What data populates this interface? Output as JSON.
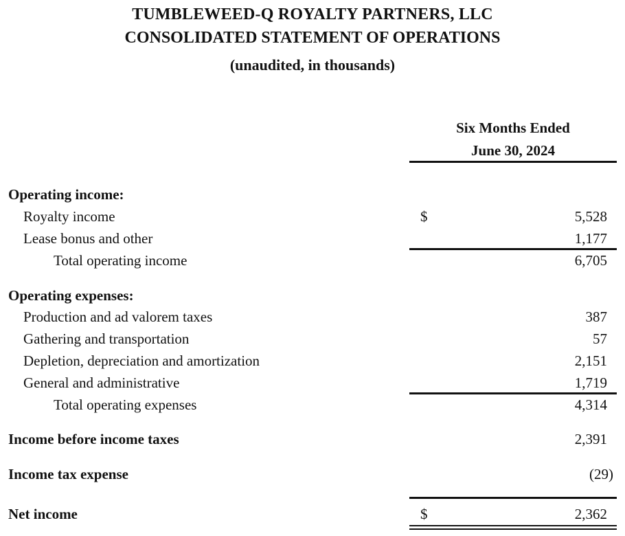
{
  "header": {
    "company": "TUMBLEWEED-Q ROYALTY PARTNERS, LLC",
    "statement": "CONSOLIDATED STATEMENT OF OPERATIONS",
    "units": "(unaudited, in thousands)"
  },
  "column": {
    "line1": "Six Months Ended",
    "line2": "June 30, 2024"
  },
  "currency_symbol": "$",
  "operating_income": {
    "heading": "Operating income:",
    "royalty_income": {
      "label": "Royalty income",
      "value": "5,528"
    },
    "lease_bonus": {
      "label": "Lease bonus and other",
      "value": "1,177"
    },
    "total": {
      "label": "Total operating income",
      "value": "6,705"
    }
  },
  "operating_expenses": {
    "heading": "Operating expenses:",
    "production_taxes": {
      "label": "Production and ad valorem taxes",
      "value": "387"
    },
    "gathering": {
      "label": "Gathering and transportation",
      "value": "57"
    },
    "dda": {
      "label": "Depletion, depreciation and amortization",
      "value": "2,151"
    },
    "g_and_a": {
      "label": "General and administrative",
      "value": "1,719"
    },
    "total": {
      "label": "Total operating expenses",
      "value": "4,314"
    }
  },
  "income_before_taxes": {
    "label": "Income before income taxes",
    "value": "2,391"
  },
  "income_tax_expense": {
    "label": "Income tax expense",
    "value": "(29)"
  },
  "net_income": {
    "label": "Net income",
    "value": "2,362"
  }
}
